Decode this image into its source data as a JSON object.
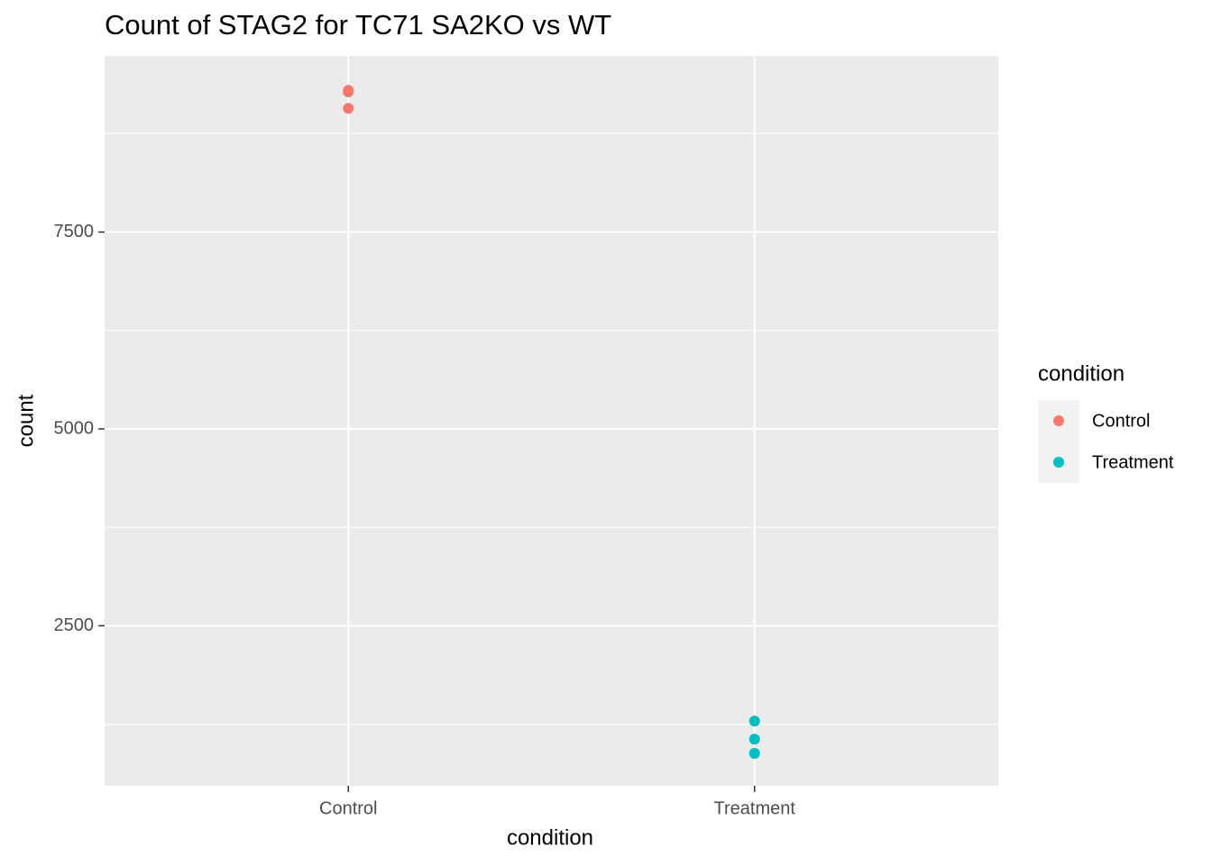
{
  "chart_data": {
    "type": "scatter",
    "title": "Count of STAG2 for TC71 SA2KO vs WT",
    "x_label": "condition",
    "y_label": "count",
    "legend_title": "condition",
    "categories": [
      "Control",
      "Treatment"
    ],
    "series": [
      {
        "name": "Control",
        "color": "#F8766D",
        "x": [
          "Control",
          "Control",
          "Control"
        ],
        "values": [
          9300,
          9280,
          9070
        ]
      },
      {
        "name": "Treatment",
        "color": "#00BFC4",
        "x": [
          "Treatment",
          "Treatment",
          "Treatment"
        ],
        "values": [
          1290,
          1060,
          880
        ]
      }
    ],
    "ylim": [
      469,
      9737
    ],
    "yticks": [
      2500,
      5000,
      7500
    ],
    "minor_yticks": [
      1250,
      3750,
      6250,
      8750
    ],
    "grid": true,
    "legend": "right"
  }
}
